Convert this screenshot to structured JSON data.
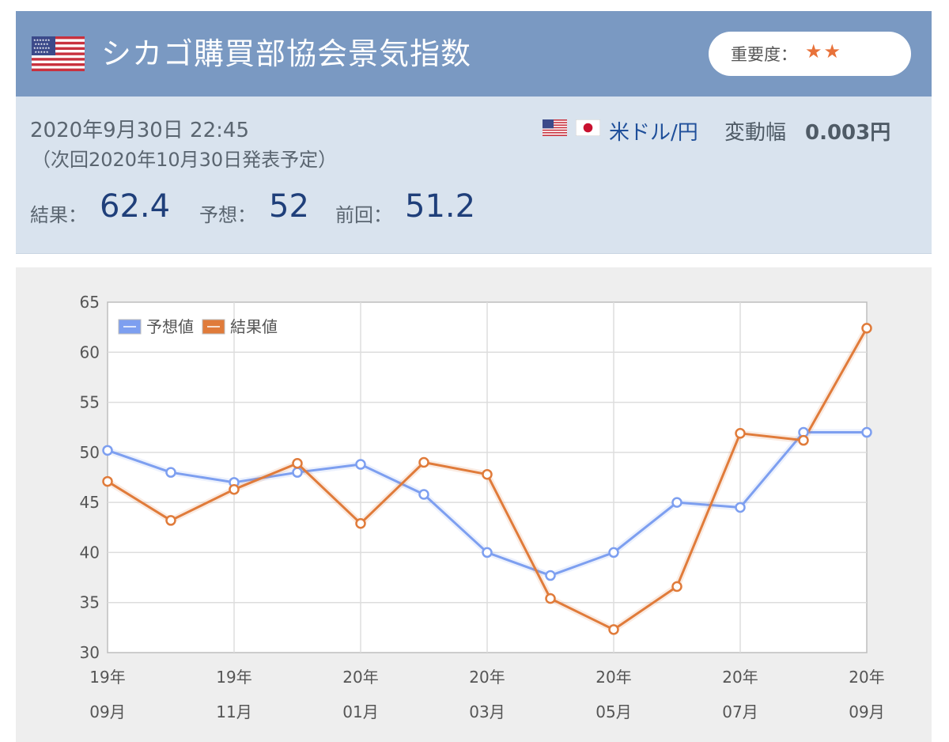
{
  "header": {
    "title": "シカゴ購買部協会景気指数",
    "importance_label": "重要度：",
    "importance_stars": "★★",
    "flag": "us-flag-icon"
  },
  "info": {
    "datetime": "2020年9月30日 22:45",
    "next": "（次回2020年10月30日発表予定）",
    "result_label": "結果：",
    "result": "62.4",
    "forecast_label": "予想：",
    "forecast": "52",
    "previous_label": "前回：",
    "previous": "51.2",
    "pair_label": "米ドル/円",
    "change_label": "変動幅",
    "change_value": "0.003円"
  },
  "colors": {
    "header_bg": "#7a99c2",
    "info_bg": "#d9e3ee",
    "forecast_series": "#7d9ff0",
    "result_series": "#e07b3a",
    "star": "#e8723a"
  },
  "chart_data": {
    "type": "line",
    "x_categories": [
      "19年09月",
      "19年10月",
      "19年11月",
      "19年12月",
      "20年01月",
      "20年02月",
      "20年03月",
      "20年04月",
      "20年05月",
      "20年06月",
      "20年07月",
      "20年08月",
      "20年09月"
    ],
    "x_tick_labels": [
      {
        "year": "19年",
        "month": "09月"
      },
      {
        "year": "19年",
        "month": "11月"
      },
      {
        "year": "20年",
        "month": "01月"
      },
      {
        "year": "20年",
        "month": "03月"
      },
      {
        "year": "20年",
        "month": "05月"
      },
      {
        "year": "20年",
        "month": "07月"
      },
      {
        "year": "20年",
        "month": "09月"
      }
    ],
    "y_ticks": [
      "30",
      "35",
      "40",
      "45",
      "50",
      "55",
      "60",
      "65"
    ],
    "ylim": [
      30,
      65
    ],
    "legend_position": "top-left",
    "grid": true,
    "series": [
      {
        "name": "予想値",
        "color": "#7d9ff0",
        "values": [
          50.2,
          48.0,
          47.0,
          48.0,
          48.8,
          45.8,
          40.0,
          37.7,
          40.0,
          45.0,
          44.5,
          52.0,
          52.0
        ]
      },
      {
        "name": "結果値",
        "color": "#e07b3a",
        "values": [
          47.1,
          43.2,
          46.3,
          48.9,
          42.9,
          49.0,
          47.8,
          35.4,
          32.3,
          36.6,
          51.9,
          51.2,
          62.4
        ]
      }
    ]
  }
}
